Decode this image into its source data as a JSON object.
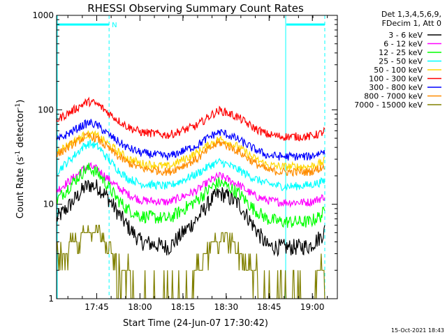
{
  "chart_data": {
    "type": "line",
    "title": "RHESSI Observing Summary Count Rates",
    "xlabel": "Start Time (24-Jun-07 17:30:42)",
    "ylabel_main": "Count Rate (s",
    "ylabel_sup1": "-1",
    "ylabel_mid": " detector",
    "ylabel_sup2": "-1",
    "ylabel_end": ")",
    "yscale": "log",
    "ylim": [
      1,
      1000
    ],
    "xlim": [
      0,
      100
    ],
    "x_ticks": [
      {
        "label": "17:45",
        "x": 14.3
      },
      {
        "label": "18:00",
        "x": 29.7
      },
      {
        "label": "18:15",
        "x": 45.0
      },
      {
        "label": "18:30",
        "x": 60.4
      },
      {
        "label": "18:45",
        "x": 75.7
      },
      {
        "label": "19:00",
        "x": 91.1
      }
    ],
    "y_ticks": [
      {
        "label": "1",
        "y": 1
      },
      {
        "label": "10",
        "y": 10
      },
      {
        "label": "100",
        "y": 100
      },
      {
        "label": "1000",
        "y": 1000
      }
    ],
    "legend_header": [
      "Det 1,3,4,5,6,9,",
      "FDecim 1, Att 0"
    ],
    "legend_placement": "top-right",
    "series": [
      {
        "name": "3 - 6 keV",
        "color": "#000000",
        "x": [
          0,
          5,
          10,
          12,
          15,
          18,
          22,
          25,
          30,
          40,
          50,
          55,
          58,
          60,
          65,
          70,
          75,
          80,
          85,
          90,
          94,
          99
        ],
        "values": [
          7,
          10,
          15,
          16,
          15,
          12,
          8,
          6,
          4,
          3.5,
          7,
          11,
          13,
          12.5,
          10,
          6,
          3.6,
          3.5,
          3.5,
          3.6,
          4.5,
          7.5
        ]
      },
      {
        "name": "6 - 12 keV",
        "color": "#ff00ff",
        "x": [
          0,
          5,
          10,
          12,
          15,
          18,
          22,
          25,
          30,
          40,
          50,
          55,
          58,
          60,
          65,
          70,
          75,
          80,
          85,
          90,
          94,
          99
        ],
        "values": [
          14,
          18,
          24,
          25,
          23,
          19,
          15,
          13,
          11,
          10.5,
          14,
          18,
          20,
          19,
          16,
          12.5,
          11,
          10.5,
          10.5,
          10.5,
          11.5,
          14
        ]
      },
      {
        "name": "12 - 25 keV",
        "color": "#00ff00",
        "x": [
          0,
          5,
          10,
          12,
          15,
          18,
          22,
          25,
          30,
          40,
          50,
          55,
          58,
          60,
          65,
          70,
          75,
          80,
          85,
          90,
          94,
          99
        ],
        "values": [
          11,
          16,
          23,
          24,
          21,
          16,
          11,
          9,
          7.5,
          7,
          11,
          15,
          17,
          16,
          13,
          9,
          7,
          6.5,
          6.5,
          6.5,
          7.5,
          11
        ]
      },
      {
        "name": "25 - 50 keV",
        "color": "#00ffff",
        "x": [
          0,
          5,
          10,
          12,
          15,
          18,
          22,
          25,
          30,
          40,
          50,
          55,
          58,
          60,
          65,
          70,
          75,
          80,
          85,
          90,
          94,
          99
        ],
        "values": [
          22,
          30,
          42,
          44,
          40,
          31,
          23,
          19,
          16.5,
          15.5,
          21,
          26,
          28,
          27,
          23,
          19,
          16.5,
          15.5,
          15.5,
          16,
          17,
          20
        ]
      },
      {
        "name": "50 - 100 keV",
        "color": "#ffd700",
        "x": [
          0,
          5,
          10,
          12,
          15,
          18,
          22,
          25,
          30,
          40,
          50,
          55,
          58,
          60,
          65,
          70,
          75,
          80,
          85,
          90,
          94,
          99
        ],
        "values": [
          36,
          44,
          54,
          55,
          52,
          44,
          36,
          31,
          27,
          25,
          35,
          44,
          49,
          47,
          40,
          31,
          26,
          25,
          25,
          25,
          27,
          33
        ]
      },
      {
        "name": "100 - 300 keV",
        "color": "#ff0000",
        "x": [
          0,
          5,
          10,
          12,
          15,
          18,
          22,
          25,
          30,
          40,
          50,
          55,
          58,
          60,
          65,
          70,
          75,
          80,
          85,
          90,
          94,
          99
        ],
        "values": [
          78,
          95,
          118,
          122,
          112,
          95,
          77,
          67,
          58,
          54,
          68,
          88,
          98,
          95,
          82,
          65,
          55,
          52,
          52,
          52,
          56,
          70
        ]
      },
      {
        "name": "300 - 800 keV",
        "color": "#0000ff",
        "x": [
          0,
          5,
          10,
          12,
          15,
          18,
          22,
          25,
          30,
          40,
          50,
          55,
          58,
          60,
          65,
          70,
          75,
          80,
          85,
          90,
          94,
          99
        ],
        "values": [
          47,
          58,
          70,
          73,
          67,
          56,
          46,
          40,
          35,
          32,
          42,
          53,
          58,
          56,
          48,
          39,
          33,
          32,
          32,
          32,
          35,
          43
        ]
      },
      {
        "name": "800 - 7000 keV",
        "color": "#ff8c00",
        "x": [
          0,
          5,
          10,
          12,
          15,
          18,
          22,
          25,
          30,
          40,
          50,
          55,
          58,
          60,
          65,
          70,
          75,
          80,
          85,
          90,
          94,
          99
        ],
        "values": [
          33,
          42,
          51,
          53,
          48,
          40,
          32,
          28,
          24,
          22,
          30,
          40,
          45,
          43,
          36,
          28,
          23,
          22,
          22,
          22,
          24,
          30
        ]
      },
      {
        "name": "7000 - 15000 keV",
        "color": "#808000",
        "x": [
          0,
          3,
          5,
          10,
          15,
          17,
          20,
          25,
          30,
          40,
          45,
          50,
          53,
          55,
          60,
          63,
          65,
          70,
          75,
          80,
          85,
          88,
          90,
          94,
          99
        ],
        "values": [
          2.8,
          2.8,
          3.8,
          4.8,
          4.8,
          3.8,
          2.8,
          1.8,
          1,
          1,
          1,
          1.8,
          2.8,
          3.8,
          4.8,
          3.8,
          2.8,
          1.8,
          1,
          1,
          1,
          1,
          1,
          1.9,
          2
        ]
      }
    ],
    "flags": [
      {
        "label": "N",
        "x_start": 0,
        "x_end": 18.7,
        "level": 800
      },
      {
        "label": "",
        "x_start": 81.6,
        "x_end": 100,
        "level": 800
      }
    ],
    "solid_markers_x": [
      0,
      81.6
    ],
    "dashed_markers_x": [
      18.7,
      100
    ]
  },
  "footer_timestamp": "15-Oct-2021 18:43",
  "colors": {
    "background": "#ffffff",
    "axis": "#000000",
    "marker": "#00ffff"
  }
}
